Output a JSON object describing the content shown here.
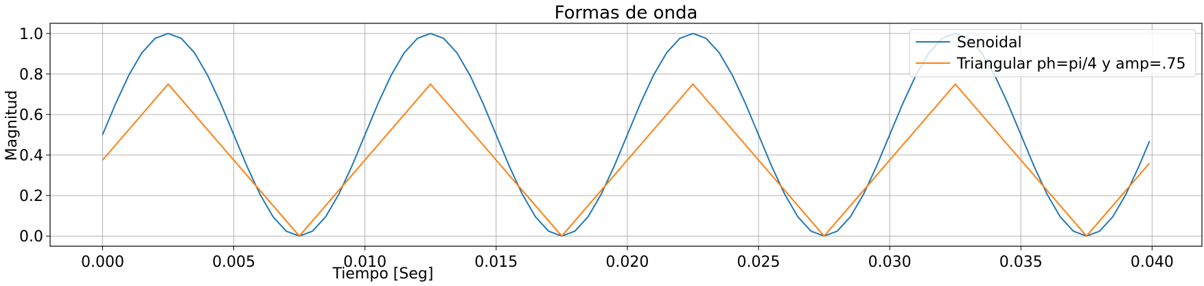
{
  "chart_data": {
    "type": "line",
    "title": "Formas de onda",
    "xlabel": "Tiempo [Seg]",
    "ylabel": "Magnitud",
    "xlim": [
      -0.002,
      0.0419
    ],
    "ylim": [
      -0.05,
      1.05
    ],
    "xticks": [
      0.0,
      0.005,
      0.01,
      0.015,
      0.02,
      0.025,
      0.03,
      0.035,
      0.04
    ],
    "xtick_labels": [
      "0.000",
      "0.005",
      "0.010",
      "0.015",
      "0.020",
      "0.025",
      "0.030",
      "0.035",
      "0.040"
    ],
    "yticks": [
      0.0,
      0.2,
      0.4,
      0.6,
      0.8,
      1.0
    ],
    "ytick_labels": [
      "0.0",
      "0.2",
      "0.4",
      "0.6",
      "0.8",
      "1.0"
    ],
    "grid": true,
    "legend_position": "top-right",
    "series": [
      {
        "name": "Senoidal",
        "color": "#1f77b4",
        "x": [
          0.0,
          0.0005,
          0.001,
          0.0015,
          0.002,
          0.0025,
          0.003,
          0.0035,
          0.004,
          0.0045,
          0.005,
          0.0055,
          0.006,
          0.0065,
          0.007,
          0.0075,
          0.008,
          0.0085,
          0.009,
          0.0095,
          0.01,
          0.0105,
          0.011,
          0.0115,
          0.012,
          0.0125,
          0.013,
          0.0135,
          0.014,
          0.0145,
          0.015,
          0.0155,
          0.016,
          0.0165,
          0.017,
          0.0175,
          0.018,
          0.0185,
          0.019,
          0.0195,
          0.02,
          0.0205,
          0.021,
          0.0215,
          0.022,
          0.0225,
          0.023,
          0.0235,
          0.024,
          0.0245,
          0.025,
          0.0255,
          0.026,
          0.0265,
          0.027,
          0.0275,
          0.028,
          0.0285,
          0.029,
          0.0295,
          0.03,
          0.0305,
          0.031,
          0.0315,
          0.032,
          0.0325,
          0.033,
          0.0335,
          0.034,
          0.0345,
          0.035,
          0.0355,
          0.036,
          0.0365,
          0.037,
          0.0375,
          0.038,
          0.0385,
          0.039,
          0.0395,
          0.0399
        ],
        "values": [
          0.5,
          0.655,
          0.794,
          0.905,
          0.976,
          1.0,
          0.976,
          0.905,
          0.794,
          0.655,
          0.5,
          0.345,
          0.206,
          0.095,
          0.024,
          0.0,
          0.024,
          0.095,
          0.206,
          0.345,
          0.5,
          0.655,
          0.794,
          0.905,
          0.976,
          1.0,
          0.976,
          0.905,
          0.794,
          0.655,
          0.5,
          0.345,
          0.206,
          0.095,
          0.024,
          0.0,
          0.024,
          0.095,
          0.206,
          0.345,
          0.5,
          0.655,
          0.794,
          0.905,
          0.976,
          1.0,
          0.976,
          0.905,
          0.794,
          0.655,
          0.5,
          0.345,
          0.206,
          0.095,
          0.024,
          0.0,
          0.024,
          0.095,
          0.206,
          0.345,
          0.5,
          0.655,
          0.794,
          0.905,
          0.976,
          1.0,
          0.976,
          0.905,
          0.794,
          0.655,
          0.5,
          0.345,
          0.206,
          0.095,
          0.024,
          0.0,
          0.024,
          0.095,
          0.206,
          0.345,
          0.469
        ]
      },
      {
        "name": "Triangular ph=pi/4 y amp=.75",
        "color": "#ff7f0e",
        "x": [
          0.0,
          0.0025,
          0.0075,
          0.0125,
          0.0175,
          0.0225,
          0.0275,
          0.0325,
          0.0375,
          0.0399
        ],
        "values": [
          0.375,
          0.75,
          0.0,
          0.75,
          0.0,
          0.75,
          0.0,
          0.75,
          0.0,
          0.36
        ]
      }
    ]
  }
}
